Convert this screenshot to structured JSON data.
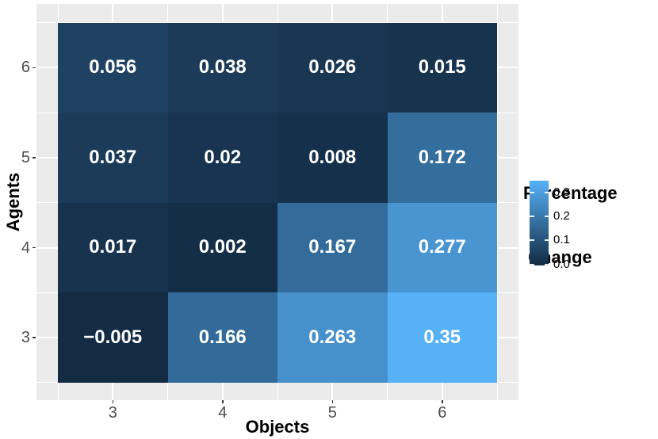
{
  "chart_data": {
    "type": "heatmap",
    "xlabel": "Objects",
    "ylabel": "Agents",
    "x_tick_labels": [
      "3",
      "4",
      "5",
      "6"
    ],
    "y_tick_labels_top_to_bottom": [
      "6",
      "5",
      "4",
      "3"
    ],
    "rows": [
      {
        "agents": "6",
        "values": [
          0.056,
          0.038,
          0.026,
          0.015
        ],
        "labels": [
          "0.056",
          "0.038",
          "0.026",
          "0.015"
        ],
        "colors": [
          "#1F4262",
          "#1B3B59",
          "#193753",
          "#17334D"
        ]
      },
      {
        "agents": "5",
        "values": [
          0.037,
          0.02,
          0.008,
          0.172
        ],
        "labels": [
          "0.037",
          "0.02",
          "0.008",
          "0.172"
        ],
        "colors": [
          "#1B3B58",
          "#183450",
          "#15304A",
          "#346E9D"
        ]
      },
      {
        "agents": "4",
        "values": [
          0.017,
          0.002,
          0.167,
          0.277
        ],
        "labels": [
          "0.017",
          "0.002",
          "0.167",
          "0.277"
        ],
        "colors": [
          "#17334E",
          "#142E47",
          "#336C9A",
          "#4895D2"
        ]
      },
      {
        "agents": "3",
        "values": [
          -0.005,
          0.166,
          0.263,
          0.35
        ],
        "labels": [
          "−0.005",
          "0.166",
          "0.263",
          "0.35"
        ],
        "colors": [
          "#132B43",
          "#326B99",
          "#4690CB",
          "#56B1F7"
        ]
      }
    ],
    "legend": {
      "title_lines": [
        "Percentage",
        " Change"
      ],
      "tick_labels": [
        "0.3",
        "0.2",
        "0.1",
        "0.0"
      ],
      "tick_fractions_from_bottom": [
        0.859,
        0.577,
        0.296,
        0.014
      ],
      "gradient_low": "#132B43",
      "gradient_high": "#56B1F7",
      "limits": [
        -0.005,
        0.35
      ],
      "position": "right"
    },
    "layout_hints": {
      "panel_background": "#EBEBEB",
      "grid_color": "#FFFFFF",
      "grid": "on",
      "axis_text_color": "#4D4D4D",
      "tick_mark_color": "#333333",
      "value_text_color": "#FFFFFF"
    }
  }
}
